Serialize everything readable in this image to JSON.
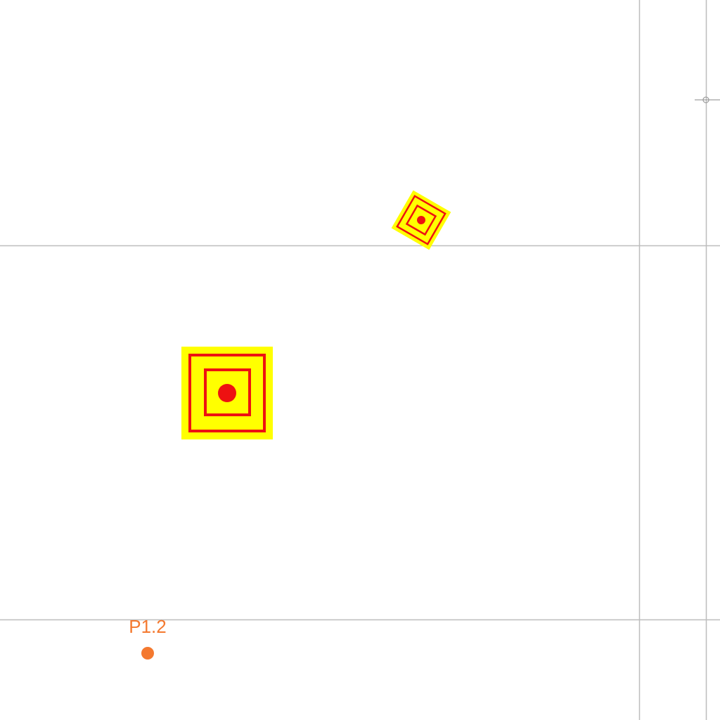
{
  "canvas": {
    "background": "#ffffff",
    "grid_line_color": "#bdbdbd",
    "target_fill": "#ffff00",
    "target_stroke": "#ee1111"
  },
  "grid": {
    "horizontal_lines": 2,
    "vertical_lines": 2
  },
  "targets": [
    {
      "name": "target-marker-large",
      "rotation_deg": 0
    },
    {
      "name": "target-marker-small-rotated",
      "rotation_deg": 30
    }
  ],
  "points": [
    {
      "label": "P1.2",
      "color": "#f4792f"
    }
  ],
  "crosshair": {
    "icon": "crosshair-icon"
  }
}
